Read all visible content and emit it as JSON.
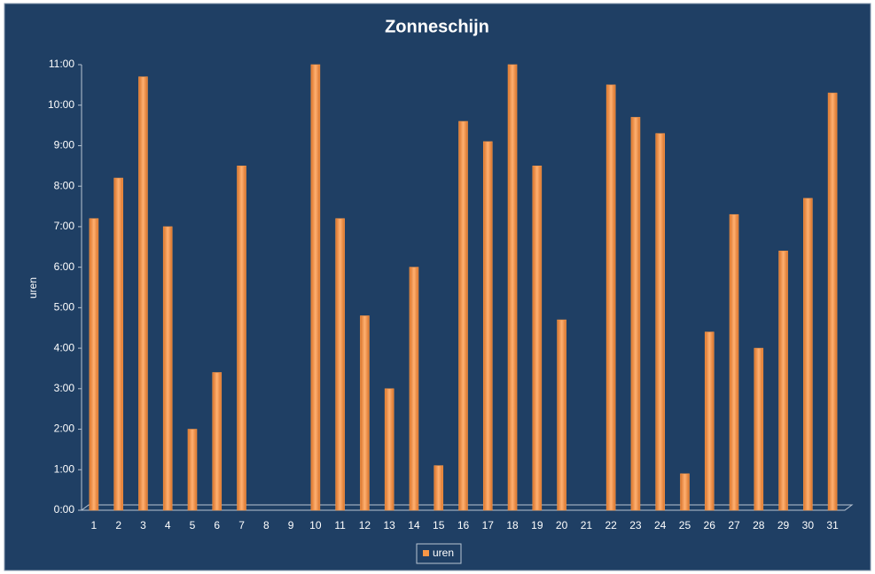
{
  "chart_data": {
    "type": "bar",
    "title": "Zonneschijn",
    "y_label": "uren",
    "categories": [
      "1",
      "2",
      "3",
      "4",
      "5",
      "6",
      "7",
      "8",
      "9",
      "10",
      "11",
      "12",
      "13",
      "14",
      "15",
      "16",
      "17",
      "18",
      "19",
      "20",
      "21",
      "22",
      "23",
      "24",
      "25",
      "26",
      "27",
      "28",
      "29",
      "30",
      "31"
    ],
    "series": [
      {
        "name": "uren",
        "color": "#f79646",
        "values": [
          7.2,
          8.2,
          10.7,
          7.0,
          2.0,
          3.4,
          8.5,
          null,
          null,
          11.0,
          7.2,
          4.8,
          3.0,
          6.0,
          1.1,
          9.6,
          9.1,
          11.0,
          8.5,
          4.7,
          null,
          10.5,
          9.7,
          9.3,
          0.9,
          4.4,
          7.3,
          4.0,
          6.4,
          7.7,
          10.3
        ]
      }
    ],
    "ylim": [
      0,
      11
    ],
    "yticks": [
      {
        "value": 0,
        "label": "0:00"
      },
      {
        "value": 1,
        "label": "1:00"
      },
      {
        "value": 2,
        "label": "2:00"
      },
      {
        "value": 3,
        "label": "3:00"
      },
      {
        "value": 4,
        "label": "4:00"
      },
      {
        "value": 5,
        "label": "5:00"
      },
      {
        "value": 6,
        "label": "6:00"
      },
      {
        "value": 7,
        "label": "7:00"
      },
      {
        "value": 8,
        "label": "8:00"
      },
      {
        "value": 9,
        "label": "9:00"
      },
      {
        "value": 10,
        "label": "10:00"
      },
      {
        "value": 11,
        "label": "11:00"
      }
    ],
    "grid": false,
    "legend": "bottom"
  }
}
